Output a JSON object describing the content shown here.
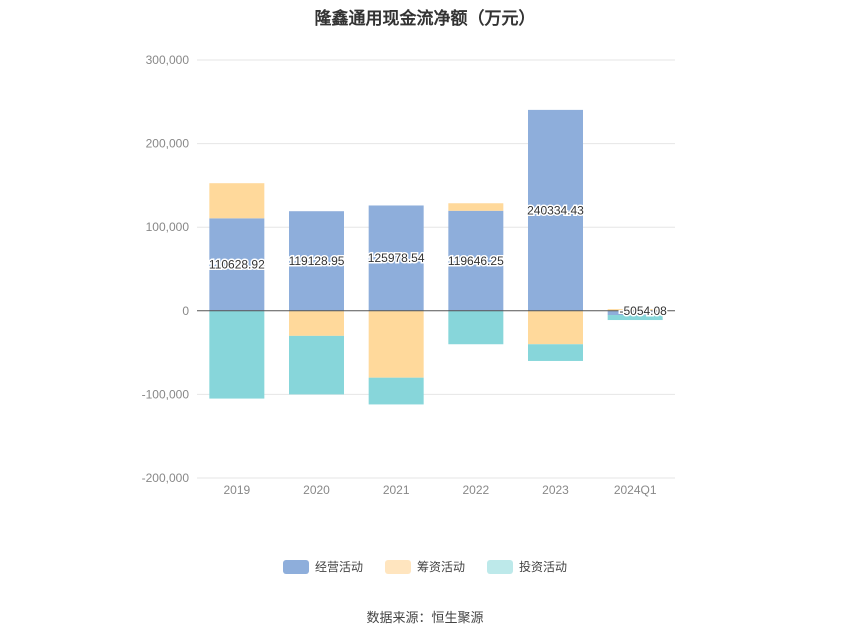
{
  "chart_data": {
    "type": "bar",
    "stacked": true,
    "title": "隆鑫通用现金流净额（万元）",
    "categories": [
      "2019",
      "2020",
      "2021",
      "2022",
      "2023",
      "2024Q1"
    ],
    "series": [
      {
        "name": "经营活动",
        "color": "#8eaedb",
        "values": [
          110628.92,
          119128.95,
          125978.54,
          119646.25,
          240334.43,
          -5054.08
        ]
      },
      {
        "name": "筹资活动",
        "color": "#ffd99b",
        "values": [
          42000,
          -30000,
          -80000,
          9000,
          -40000,
          2000
        ]
      },
      {
        "name": "投资活动",
        "color": "#87d6da",
        "values": [
          -105000,
          -70000,
          -32000,
          -40000,
          -20000,
          -6000
        ]
      }
    ],
    "data_labels": [
      "110628.92",
      "119128.95",
      "125978.54",
      "119646.25",
      "240334.43",
      "-5054.08"
    ],
    "ylim": [
      -200000,
      300000
    ],
    "yticks": [
      -200000,
      -100000,
      0,
      100000,
      200000,
      300000
    ],
    "ytick_labels": [
      "-200,000",
      "-100,000",
      "0",
      "100,000",
      "200,000",
      "300,000"
    ],
    "grid": true,
    "legend_position": "bottom-center"
  },
  "legend_items": [
    {
      "label": "经营活动",
      "color": "#8eaedb"
    },
    {
      "label": "筹资活动",
      "color": "#ffe5bf"
    },
    {
      "label": "投资活动",
      "color": "#bde9ea"
    }
  ],
  "source": "数据来源：恒生聚源"
}
